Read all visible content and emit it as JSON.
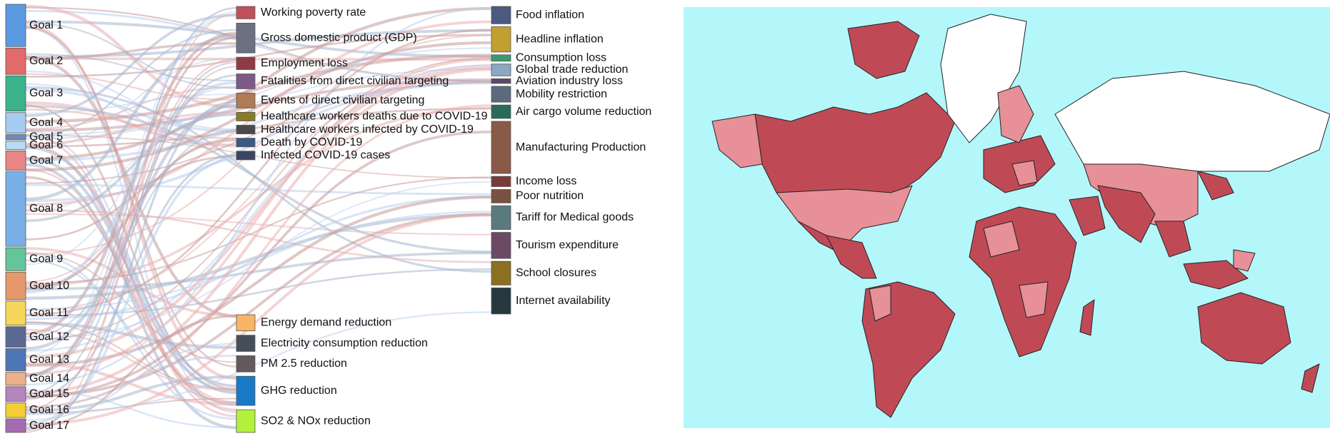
{
  "sankey": {
    "goals": [
      {
        "label": "Goal 1",
        "color": "#5b9ae0",
        "weight": 7.2
      },
      {
        "label": "Goal 2",
        "color": "#e36a6a",
        "weight": 4.5
      },
      {
        "label": "Goal 3",
        "color": "#3db38a",
        "weight": 6.0
      },
      {
        "label": "Goal 4",
        "color": "#a6cdf0",
        "weight": 3.5
      },
      {
        "label": "Goal 5",
        "color": "#6d8cba",
        "weight": 0.9
      },
      {
        "label": "Goal 6",
        "color": "#b9dcf4",
        "weight": 1.4
      },
      {
        "label": "Goal 7",
        "color": "#ea8585",
        "weight": 3.3
      },
      {
        "label": "Goal 8",
        "color": "#7ab0e8",
        "weight": 12.7
      },
      {
        "label": "Goal 9",
        "color": "#66c49b",
        "weight": 3.9
      },
      {
        "label": "Goal 10",
        "color": "#e5996d",
        "weight": 4.7
      },
      {
        "label": "Goal 11",
        "color": "#f6d75c",
        "weight": 4.1
      },
      {
        "label": "Goal 12",
        "color": "#5b6a93",
        "weight": 3.5
      },
      {
        "label": "Goal 13",
        "color": "#4c76b6",
        "weight": 3.8
      },
      {
        "label": "Goal 14",
        "color": "#eeb088",
        "weight": 2.2
      },
      {
        "label": "Goal 15",
        "color": "#b585bd",
        "weight": 2.5
      },
      {
        "label": "Goal 16",
        "color": "#f5cd33",
        "weight": 2.5
      },
      {
        "label": "Goal 17",
        "color": "#a56bb0",
        "weight": 2.3
      }
    ],
    "middle_top": [
      {
        "label": "Working poverty rate",
        "color": "#c0505a",
        "weight": 1.0
      },
      {
        "label": "Gross domestic product (GDP)",
        "color": "#6c7080",
        "weight": 2.4
      },
      {
        "label": "Employment loss",
        "color": "#8f3b45",
        "weight": 1.0
      },
      {
        "label": "Fatalities from direct civilian targeting",
        "color": "#7d5a85",
        "weight": 1.2
      },
      {
        "label": "Events of direct civilian targeting",
        "color": "#b07a55",
        "weight": 1.2
      },
      {
        "label": "Healthcare workers deaths due to COVID-19",
        "color": "#8a7a2a",
        "weight": 0.7
      },
      {
        "label": "Healthcare workers infected by COVID-19",
        "color": "#4a4a4a",
        "weight": 0.7
      },
      {
        "label": "Death by COVID-19",
        "color": "#3a5a85",
        "weight": 0.7
      },
      {
        "label": "Infected COVID-19 cases",
        "color": "#3a4560",
        "weight": 0.7
      }
    ],
    "middle_bottom": [
      {
        "label": "Energy demand reduction",
        "color": "#f7b567",
        "weight": 2.5
      },
      {
        "label": "Electricity consumption reduction",
        "color": "#454c5a",
        "weight": 2.5
      },
      {
        "label": "PM 2.5 reduction",
        "color": "#625a5c",
        "weight": 2.5
      },
      {
        "label": "GHG reduction",
        "color": "#1a7ac8",
        "weight": 4.5
      },
      {
        "label": "SO2 & NOx reduction",
        "color": "#b2f03c",
        "weight": 3.5
      }
    ],
    "right": [
      {
        "label": "Food inflation",
        "color": "#4a5a80",
        "weight": 2.2
      },
      {
        "label": "Headline inflation",
        "color": "#c2a030",
        "weight": 3.2
      },
      {
        "label": "Consumption loss",
        "color": "#3a9a70",
        "weight": 0.8
      },
      {
        "label": "Global trade reduction",
        "color": "#8aa7c4",
        "weight": 1.5
      },
      {
        "label": "Aviation industry loss",
        "color": "#5a4a6a",
        "weight": 0.6
      },
      {
        "label": "Mobility restriction",
        "color": "#5c6a80",
        "weight": 2.0
      },
      {
        "label": "Air cargo volume reduction",
        "color": "#2a6a5a",
        "weight": 1.7
      },
      {
        "label": "Manufacturing Production",
        "color": "#8a5a48",
        "weight": 6.6
      },
      {
        "label": "Income loss",
        "color": "#7a3a3a",
        "weight": 1.3
      },
      {
        "label": "Poor nutrition",
        "color": "#7a5040",
        "weight": 1.7
      },
      {
        "label": "Tariff for Medical goods",
        "color": "#5a7a80",
        "weight": 3.0
      },
      {
        "label": "Tourism expenditure",
        "color": "#6a4a65",
        "weight": 3.3
      },
      {
        "label": "School closures",
        "color": "#8a7020",
        "weight": 3.0
      },
      {
        "label": "Internet availability",
        "color": "#253840",
        "weight": 3.3
      }
    ]
  },
  "map": {
    "ocean_color": "#b3f7fb",
    "land_dark": "#bf4a56",
    "land_light": "#e79098",
    "no_data": "#ffffff"
  }
}
